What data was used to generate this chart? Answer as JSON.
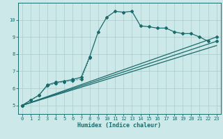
{
  "xlabel": "Humidex (Indice chaleur)",
  "xlim": [
    -0.5,
    23.5
  ],
  "ylim": [
    4.5,
    11.0
  ],
  "yticks": [
    5,
    6,
    7,
    8,
    9,
    10
  ],
  "xticks": [
    0,
    1,
    2,
    3,
    4,
    5,
    6,
    7,
    8,
    9,
    10,
    11,
    12,
    13,
    14,
    15,
    16,
    17,
    18,
    19,
    20,
    21,
    22,
    23
  ],
  "bg_color": "#cce8e8",
  "grid_color": "#aacccc",
  "line_color": "#1a6b6b",
  "line1_x": [
    0,
    1,
    2,
    3,
    4,
    5,
    6,
    7,
    8,
    9,
    10,
    11,
    12,
    13,
    14,
    15,
    16,
    17,
    18,
    19,
    20,
    21,
    22
  ],
  "line1_y": [
    5.0,
    5.3,
    5.6,
    6.2,
    6.35,
    6.42,
    6.52,
    6.65,
    7.85,
    9.3,
    10.15,
    10.5,
    10.45,
    10.5,
    9.65,
    9.6,
    9.52,
    9.52,
    9.3,
    9.2,
    9.2,
    9.0,
    8.75
  ],
  "line2_x": [
    0,
    1,
    2,
    3,
    4,
    5,
    6,
    7,
    8
  ],
  "line2_y": [
    5.0,
    5.3,
    5.6,
    6.15,
    6.3,
    6.38,
    6.45,
    6.55,
    7.8
  ],
  "line3_x": [
    0,
    23
  ],
  "line3_y": [
    5.0,
    9.0
  ],
  "line4_x": [
    0,
    23
  ],
  "line4_y": [
    5.0,
    8.75
  ],
  "line5_x": [
    0,
    23
  ],
  "line5_y": [
    5.0,
    8.5
  ]
}
